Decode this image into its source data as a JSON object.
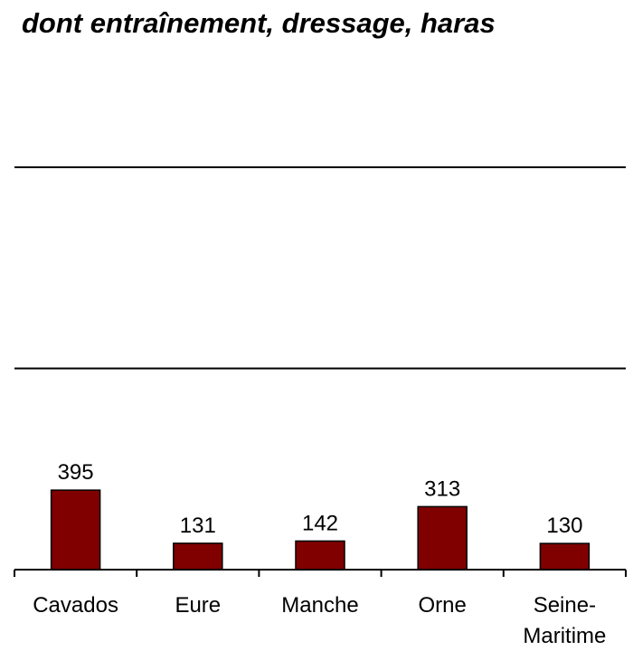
{
  "chart_data": {
    "type": "bar",
    "title": "dont entraînement, dressage, haras",
    "categories": [
      [
        "Cavados"
      ],
      [
        "Eure"
      ],
      [
        "Manche"
      ],
      [
        "Orne"
      ],
      [
        "Seine-",
        "Maritime"
      ]
    ],
    "values": [
      395,
      131,
      142,
      313,
      130
    ],
    "ylim": [
      0,
      2000
    ],
    "gridlines": [
      1000,
      2000
    ],
    "bar_color": "#800000",
    "bar_edge_color": "#000000"
  }
}
